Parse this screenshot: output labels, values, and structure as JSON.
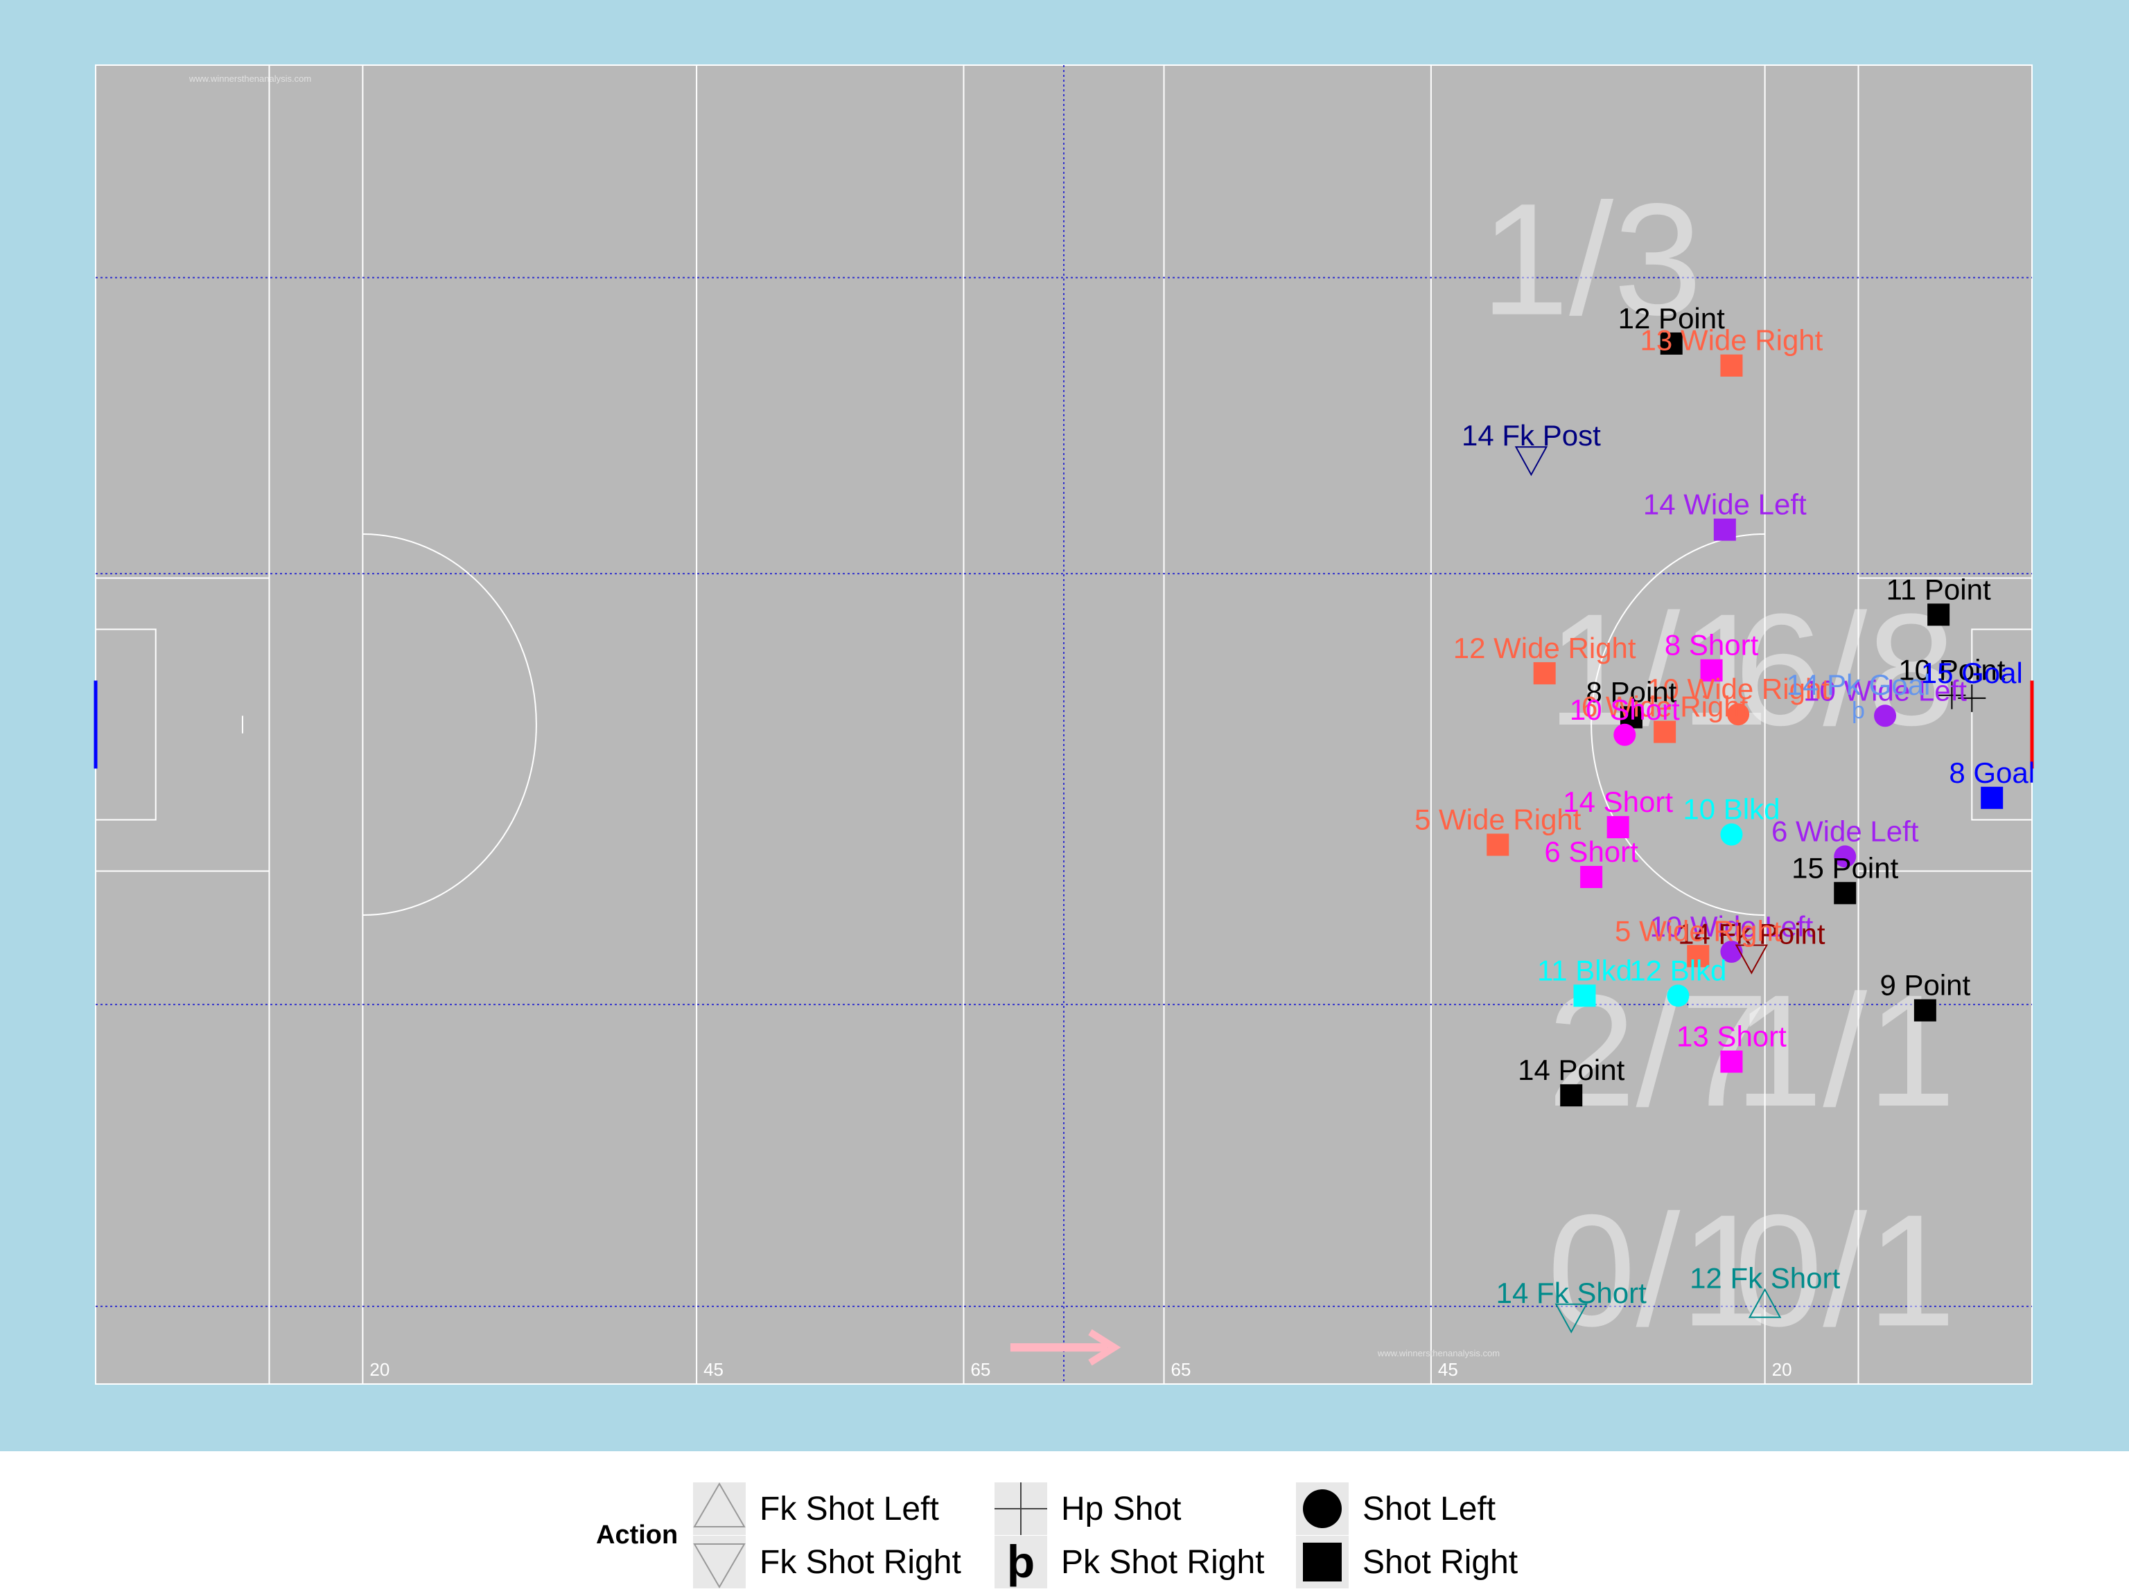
{
  "chart_data": {
    "type": "scatter",
    "pitch": {
      "x_range": [
        0,
        145
      ],
      "y_range": [
        0,
        90
      ],
      "yard_labels": [
        {
          "x": 20,
          "text": "20"
        },
        {
          "x": 45,
          "text": "45"
        },
        {
          "x": 65,
          "text": "65"
        },
        {
          "x": 80,
          "text": "65"
        },
        {
          "x": 100,
          "text": "45"
        },
        {
          "x": 125,
          "text": "20"
        }
      ],
      "watermark": "www.winnersthenanalysis.com",
      "direction_arrow": "right"
    },
    "zone_stats": [
      {
        "text": "1/3",
        "x": 112,
        "y": 73
      },
      {
        "text": "1/1",
        "x": 117,
        "y": 45
      },
      {
        "text": "6/8",
        "x": 131,
        "y": 45
      },
      {
        "text": "2/7",
        "x": 117,
        "y": 19
      },
      {
        "text": "1/1",
        "x": 131,
        "y": 19
      },
      {
        "text": "0/1",
        "x": 117,
        "y": 4
      },
      {
        "text": "0/1",
        "x": 131,
        "y": 4
      }
    ],
    "colors": {
      "Point": "#000000",
      "Wide Right": "#ff6347",
      "Wide Left": "#a020f0",
      "Short": "#ff00ff",
      "Goal": "#0000ff",
      "Blkd": "#00ffff",
      "Fk Post": "#000080",
      "Fk Point": "#8b0000",
      "Fk Short": "#008b8b",
      "Pk Goal": "#6495ed"
    },
    "shots": [
      {
        "x": 118.0,
        "y": 71.0,
        "action": "Shot Right",
        "label": "12 Point",
        "outcome": "Point"
      },
      {
        "x": 122.5,
        "y": 69.5,
        "action": "Shot Right",
        "label": "13 Wide Right",
        "outcome": "Wide Right"
      },
      {
        "x": 107.5,
        "y": 63.0,
        "action": "Fk Shot Right",
        "label": "14 Fk Post",
        "outcome": "Fk Post"
      },
      {
        "x": 122.0,
        "y": 58.3,
        "action": "Shot Right",
        "label": "14 Wide Left",
        "outcome": "Wide Left"
      },
      {
        "x": 138.0,
        "y": 52.5,
        "action": "Shot Right",
        "label": "11 Point",
        "outcome": "Point"
      },
      {
        "x": 108.5,
        "y": 48.5,
        "action": "Shot Right",
        "label": "12 Wide Right",
        "outcome": "Wide Right"
      },
      {
        "x": 121.0,
        "y": 48.7,
        "action": "Shot Right",
        "label": "8 Short",
        "outcome": "Short"
      },
      {
        "x": 139.0,
        "y": 47.0,
        "action": "Hp Shot",
        "label": "10 Point",
        "outcome": "Point"
      },
      {
        "x": 134.0,
        "y": 45.6,
        "action": "Shot Left",
        "label": "10 Wide Left",
        "outcome": "Wide Left"
      },
      {
        "x": 123.0,
        "y": 45.7,
        "action": "Shot Left",
        "label": "10 Wide Right",
        "outcome": "Wide Right"
      },
      {
        "x": 132.0,
        "y": 46.0,
        "action": "Pk Shot Right",
        "label": "14 Pk Goal",
        "outcome": "Pk Goal"
      },
      {
        "x": 115.0,
        "y": 45.5,
        "action": "Shot Right",
        "label": "8 Point",
        "outcome": "Point"
      },
      {
        "x": 117.5,
        "y": 44.5,
        "action": "Shot Right",
        "label": "6 Wide Right",
        "outcome": "Wide Right"
      },
      {
        "x": 114.5,
        "y": 44.3,
        "action": "Shot Left",
        "label": "10 Short",
        "outcome": "Short"
      },
      {
        "x": 140.5,
        "y": 46.8,
        "action": "Hp Shot",
        "label": "15 Goal",
        "outcome": "Goal"
      },
      {
        "x": 142.0,
        "y": 40.0,
        "action": "Shot Right",
        "label": "8 Goal",
        "outcome": "Goal"
      },
      {
        "x": 122.5,
        "y": 37.5,
        "action": "Shot Left",
        "label": "10 Blkd",
        "outcome": "Blkd"
      },
      {
        "x": 114.0,
        "y": 38.0,
        "action": "Shot Right",
        "label": "14 Short",
        "outcome": "Short"
      },
      {
        "x": 105.0,
        "y": 36.8,
        "action": "Shot Right",
        "label": "5 Wide Right",
        "outcome": "Wide Right"
      },
      {
        "x": 131.0,
        "y": 36.0,
        "action": "Shot Left",
        "label": "6 Wide Left",
        "outcome": "Wide Left"
      },
      {
        "x": 112.0,
        "y": 34.6,
        "action": "Shot Right",
        "label": "6 Short",
        "outcome": "Short"
      },
      {
        "x": 131.0,
        "y": 33.5,
        "action": "Shot Right",
        "label": "15 Point",
        "outcome": "Point"
      },
      {
        "x": 122.5,
        "y": 29.5,
        "action": "Shot Left",
        "label": "10 Wide Left",
        "outcome": "Wide Left"
      },
      {
        "x": 124.0,
        "y": 29.0,
        "action": "Fk Shot Right",
        "label": "14 Fk Point",
        "outcome": "Fk Point"
      },
      {
        "x": 120.0,
        "y": 29.2,
        "action": "Shot Right",
        "label": "5 Wide Right",
        "outcome": "Wide Right"
      },
      {
        "x": 118.5,
        "y": 26.5,
        "action": "Shot Left",
        "label": "12 Blkd",
        "outcome": "Blkd"
      },
      {
        "x": 111.5,
        "y": 26.5,
        "action": "Shot Right",
        "label": "11 Blkd",
        "outcome": "Blkd"
      },
      {
        "x": 137.0,
        "y": 25.5,
        "action": "Shot Right",
        "label": "9 Point",
        "outcome": "Point"
      },
      {
        "x": 122.5,
        "y": 22.0,
        "action": "Shot Right",
        "label": "13 Short",
        "outcome": "Short"
      },
      {
        "x": 110.5,
        "y": 19.7,
        "action": "Shot Right",
        "label": "14 Point",
        "outcome": "Point"
      },
      {
        "x": 110.5,
        "y": 4.5,
        "action": "Fk Shot Right",
        "label": "14 Fk Short",
        "outcome": "Fk Short"
      },
      {
        "x": 125.0,
        "y": 5.5,
        "action": "Fk Shot Left",
        "label": "12 Fk Short",
        "outcome": "Fk Short"
      }
    ],
    "legend": {
      "title": "Action",
      "placement": "bottom",
      "items": [
        {
          "label": "Fk Shot Left",
          "shape": "triangle-up-open"
        },
        {
          "label": "Fk Shot Right",
          "shape": "triangle-down-open"
        },
        {
          "label": "Hp Shot",
          "shape": "plus"
        },
        {
          "label": "Pk Shot Right",
          "shape": "thorn"
        },
        {
          "label": "Shot Left",
          "shape": "circle-filled"
        },
        {
          "label": "Shot Right",
          "shape": "square-filled"
        }
      ]
    }
  }
}
